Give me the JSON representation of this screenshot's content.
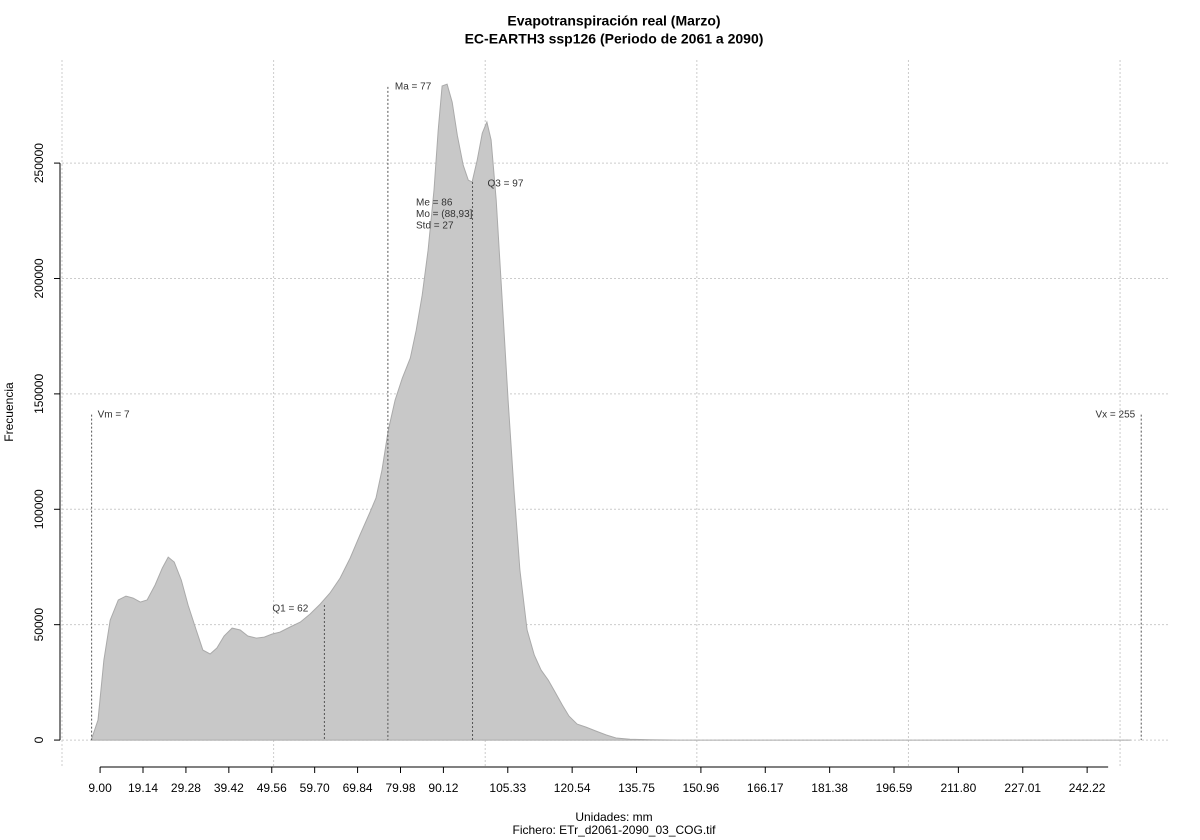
{
  "chart_data": {
    "type": "area",
    "title": "Evapotranspiración real (Marzo)",
    "subtitle": "EC-EARTH3 ssp126 (Periodo de 2061 a 2090)",
    "xlabel": "Unidades: mm",
    "caption": "Fichero: ETr_d2061-2090_03_COG.tif",
    "ylabel": "Frecuencia",
    "color": "#c8c8c8",
    "x": [
      6.9,
      8.5,
      9.9,
      11.4,
      13.3,
      15.1,
      16.8,
      18.5,
      20.1,
      22.0,
      23.7,
      25.1,
      26.5,
      28.2,
      29.8,
      31.7,
      33.3,
      35.0,
      36.6,
      38.3,
      40.2,
      42.1,
      43.9,
      45.9,
      47.8,
      49.6,
      51.5,
      53.9,
      56.3,
      58.6,
      61.0,
      63.3,
      65.7,
      68.1,
      70.4,
      72.8,
      74.2,
      75.6,
      77.1,
      78.7,
      80.4,
      82.3,
      83.7,
      85.1,
      86.5,
      87.9,
      88.9,
      89.8,
      91.0,
      92.2,
      93.4,
      94.8,
      96.0,
      96.9,
      98.1,
      99.3,
      100.4,
      101.4,
      102.6,
      104.0,
      105.4,
      106.8,
      108.2,
      109.9,
      111.6,
      113.2,
      114.9,
      116.5,
      118.2,
      119.8,
      121.7,
      123.8,
      126.2,
      128.6,
      130.9,
      134.2,
      139.0,
      146.1,
      252.4
    ],
    "values": [
      0,
      8700,
      34700,
      52000,
      60700,
      62400,
      61500,
      59800,
      60700,
      67200,
      74500,
      79300,
      77100,
      69300,
      58500,
      47700,
      39000,
      37300,
      39900,
      45100,
      48500,
      47700,
      45100,
      44200,
      44600,
      45900,
      46800,
      49000,
      51100,
      54600,
      58900,
      63700,
      70200,
      78900,
      88800,
      98800,
      104900,
      117000,
      134300,
      147300,
      156800,
      165500,
      177600,
      192800,
      212300,
      238300,
      264300,
      283400,
      284200,
      276400,
      262100,
      249100,
      242600,
      241800,
      251300,
      263000,
      267800,
      260000,
      234000,
      190600,
      147300,
      108300,
      73700,
      47700,
      36800,
      30300,
      26000,
      20800,
      15200,
      10400,
      6900,
      5600,
      3900,
      2200,
      900,
      400,
      100,
      0,
      0
    ],
    "xlim": [
      0,
      261.8
    ],
    "ylim": [
      -12100,
      293800
    ],
    "xticks": [
      {
        "value": 9,
        "label": "9.00"
      },
      19.14,
      29.28,
      39.42,
      49.56,
      {
        "value": 59.7,
        "label": "59.70"
      },
      69.84,
      79.98,
      90.12,
      105.33,
      120.54,
      135.75,
      150.96,
      166.17,
      181.38,
      196.59,
      {
        "value": 211.8,
        "label": "211.80"
      },
      227.01,
      242.22
    ],
    "yticks": [
      0,
      50000,
      100000,
      150000,
      200000,
      250000
    ],
    "xgrid": [
      0,
      50,
      100,
      150,
      200,
      250
    ],
    "grid": true,
    "annotations": [
      {
        "label": "Vm = 7",
        "x": 7,
        "y": 141000
      },
      {
        "label": "Q1 = 62",
        "x": 62,
        "y": 58500
      },
      {
        "label": "Ma = 77",
        "x": 77,
        "y": 283000
      },
      {
        "label": "Q3 = 97",
        "x": 97,
        "y": 241800
      },
      {
        "label": "Vx = 255",
        "x": 255,
        "y": 141000
      }
    ],
    "stats_text": [
      "Me = 86",
      "Mo = (88,93]",
      "Std = 27"
    ]
  }
}
